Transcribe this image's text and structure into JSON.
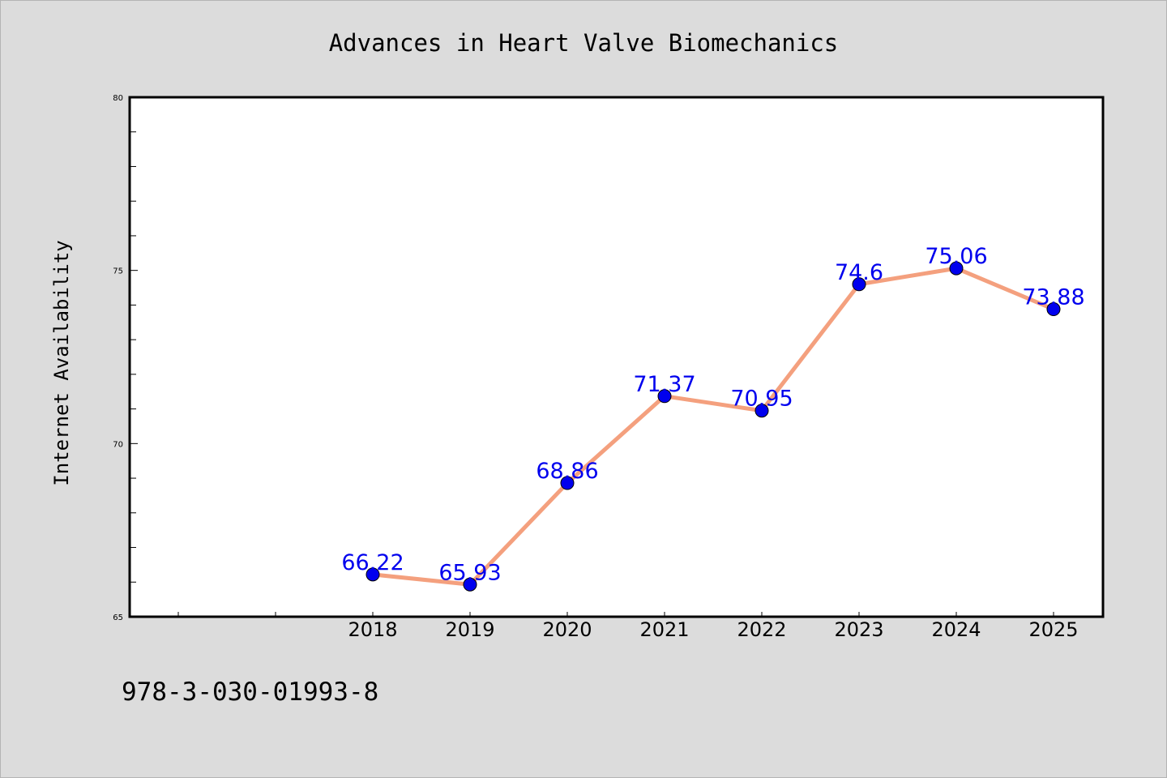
{
  "chart_data": {
    "type": "line",
    "title": "Advances in Heart Valve Biomechanics",
    "xlabel": "",
    "ylabel": "Internet Availability",
    "x": [
      "2018",
      "2019",
      "2020",
      "2021",
      "2022",
      "2023",
      "2024",
      "2025"
    ],
    "y_ticks": [
      "65",
      "70",
      "75",
      "80"
    ],
    "series": [
      {
        "values": [
          66.22,
          65.93,
          68.86,
          71.37,
          70.95,
          74.6,
          75.06,
          73.88
        ],
        "data_labels": [
          "66.22",
          "65.93",
          "68.86",
          "71.37",
          "70.95",
          "74.6",
          "75.06",
          "73.88"
        ],
        "line_color": "#f4a07e",
        "marker_color": "#0000ee"
      }
    ],
    "ylim": [
      65,
      80
    ],
    "grid": false,
    "legend": "none",
    "label_color": "#0000ee"
  },
  "footer": {
    "text": "978-3-030-01993-8"
  },
  "colors": {
    "background": "#dcdcdc",
    "plot_area": "#ffffff",
    "frame": "#000000"
  }
}
